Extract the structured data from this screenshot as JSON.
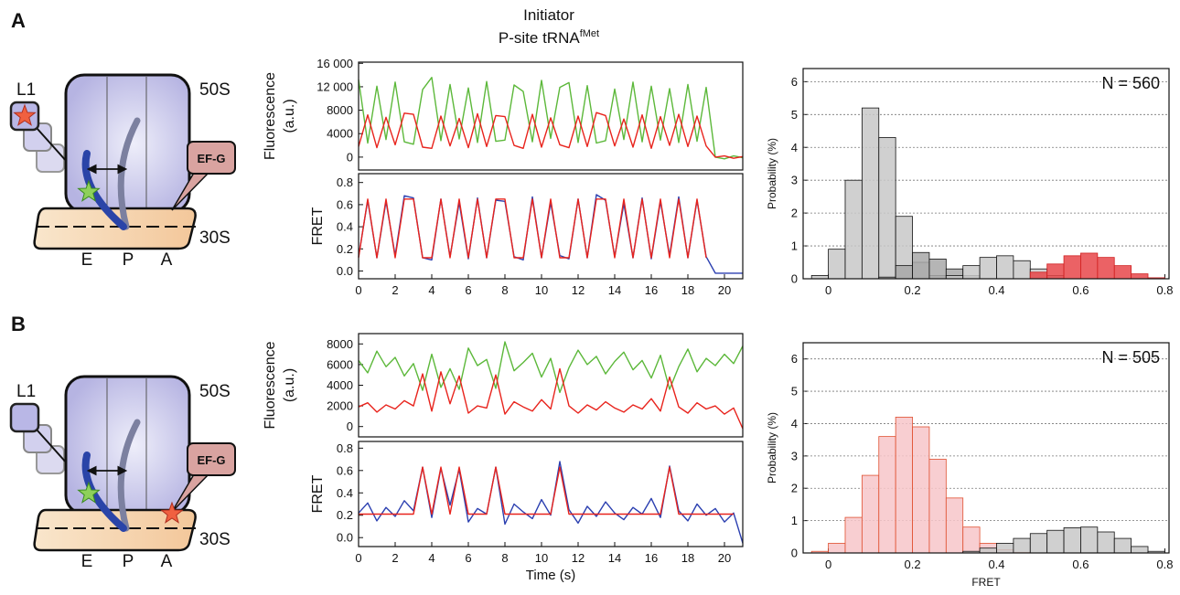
{
  "panel_labels": [
    "A",
    "B"
  ],
  "header": {
    "line1": "Initiator",
    "line2": "P-site tRNA",
    "superscript": "fMet"
  },
  "diagrams": [
    {
      "l1": "L1",
      "large_subunit": "50S",
      "factor": "EF-G",
      "small_subunit": "30S",
      "sites": [
        "E",
        "P",
        "A"
      ]
    },
    {
      "l1": "L1",
      "large_subunit": "50S",
      "factor": "EF-G",
      "small_subunit": "30S",
      "sites": [
        "E",
        "P",
        "A"
      ]
    }
  ],
  "chart_data": [
    {
      "type": "line",
      "ylabel": [
        "Fluorescence",
        "(a.u.)"
      ],
      "x": [
        0,
        0.5,
        1,
        1.5,
        2,
        2.5,
        3,
        3.5,
        4,
        4.5,
        5,
        5.5,
        6,
        6.5,
        7,
        7.5,
        8,
        8.5,
        9,
        9.5,
        10,
        10.5,
        11,
        11.5,
        12,
        12.5,
        13,
        13.5,
        14,
        14.5,
        15,
        15.5,
        16,
        16.5,
        17,
        17.5,
        18,
        18.5,
        19,
        19.5,
        20,
        20.5,
        21
      ],
      "xlim": [
        0,
        21
      ],
      "ylim": [
        -2200,
        16200
      ],
      "yticks": [
        0,
        4000,
        8000,
        {
          "value": 12000,
          "label": "12 000"
        },
        {
          "value": 16000,
          "label": "16 000"
        }
      ],
      "series": [
        {
          "color": "#5cb83a",
          "values": [
            13200,
            2400,
            12100,
            3000,
            12800,
            2600,
            2200,
            11500,
            13600,
            2800,
            12400,
            3100,
            11800,
            2500,
            12900,
            2700,
            2900,
            12300,
            11200,
            2600,
            13100,
            3200,
            11900,
            12700,
            2500,
            12200,
            2400,
            2800,
            11600,
            3000,
            12800,
            2600,
            12100,
            2900,
            11700,
            2500,
            12400,
            2700,
            11900,
            0,
            -300,
            200,
            -100
          ]
        },
        {
          "color": "#e8231c",
          "values": [
            1800,
            7200,
            1600,
            6800,
            2100,
            7500,
            7300,
            1700,
            1500,
            7000,
            1900,
            6600,
            1600,
            7400,
            1800,
            7100,
            6900,
            2000,
            1500,
            7300,
            1700,
            6700,
            2100,
            1600,
            7000,
            1800,
            7600,
            7100,
            1900,
            6500,
            1700,
            7200,
            1500,
            6900,
            2000,
            7300,
            1800,
            7000,
            1900,
            0,
            200,
            -200,
            100
          ]
        }
      ]
    },
    {
      "type": "line",
      "ylabel": "FRET",
      "x": [
        0,
        0.5,
        1,
        1.5,
        2,
        2.5,
        3,
        3.5,
        4,
        4.5,
        5,
        5.5,
        6,
        6.5,
        7,
        7.5,
        8,
        8.5,
        9,
        9.5,
        10,
        10.5,
        11,
        11.5,
        12,
        12.5,
        13,
        13.5,
        14,
        14.5,
        15,
        15.5,
        16,
        16.5,
        17,
        17.5,
        18,
        18.5,
        19,
        19.5,
        20,
        20.5,
        21
      ],
      "xlim": [
        0,
        21
      ],
      "xticks": [
        0,
        2,
        4,
        6,
        8,
        10,
        12,
        14,
        16,
        18,
        20
      ],
      "ylim": [
        -0.07,
        0.88
      ],
      "yticks": [
        {
          "value": 0,
          "label": "0.0"
        },
        0.2,
        0.4,
        0.6,
        0.8
      ],
      "series": [
        {
          "color": "#2b3fb0",
          "values": [
            0.13,
            0.64,
            0.12,
            0.63,
            0.14,
            0.68,
            0.66,
            0.12,
            0.1,
            0.65,
            0.13,
            0.62,
            0.11,
            0.66,
            0.12,
            0.64,
            0.63,
            0.13,
            0.1,
            0.67,
            0.12,
            0.62,
            0.14,
            0.11,
            0.65,
            0.12,
            0.69,
            0.64,
            0.13,
            0.61,
            0.12,
            0.66,
            0.11,
            0.63,
            0.14,
            0.67,
            0.12,
            0.64,
            0.13,
            -0.02,
            -0.02,
            -0.02,
            -0.02
          ]
        },
        {
          "color": "#e8231c",
          "values": [
            0.12,
            0.65,
            0.12,
            0.65,
            0.12,
            0.65,
            0.65,
            0.12,
            0.12,
            0.65,
            0.12,
            0.65,
            0.12,
            0.65,
            0.12,
            0.65,
            0.65,
            0.12,
            0.12,
            0.65,
            0.12,
            0.65,
            0.12,
            0.12,
            0.65,
            0.12,
            0.65,
            0.65,
            0.12,
            0.65,
            0.12,
            0.65,
            0.12,
            0.65,
            0.12,
            0.65,
            0.12,
            0.65,
            0.12,
            null,
            null,
            null,
            null
          ]
        }
      ]
    },
    {
      "type": "histogram",
      "ylabel": "Probability (%)",
      "annotation": "N = 560",
      "bins": [
        -0.04,
        0,
        0.04,
        0.08,
        0.12,
        0.16,
        0.2,
        0.24,
        0.28,
        0.32,
        0.36,
        0.4,
        0.44,
        0.48,
        0.52,
        0.56,
        0.6,
        0.64,
        0.68,
        0.72,
        0.76,
        0.8
      ],
      "xlim": [
        -0.06,
        0.81
      ],
      "xticks": [
        0,
        0.2,
        0.4,
        0.6,
        0.8
      ],
      "ylim": [
        0,
        6.4
      ],
      "yticks": [
        0,
        1,
        2,
        3,
        4,
        5,
        6
      ],
      "grid": true,
      "series": [
        {
          "color": "#c8c8c8",
          "edge_color": "#111111",
          "values": [
            0.1,
            0.9,
            3.0,
            5.2,
            4.3,
            1.9,
            0.5,
            0.1,
            0,
            0,
            0,
            0,
            0,
            0,
            0,
            0,
            0,
            0,
            0,
            0,
            0
          ]
        },
        {
          "color": "#a8a8a8",
          "edge_color": "#111111",
          "values": [
            0,
            0,
            0,
            0,
            0.05,
            0.4,
            0.8,
            0.6,
            0.3,
            0.1,
            0,
            0,
            0,
            0,
            0,
            0,
            0,
            0,
            0,
            0,
            0
          ]
        },
        {
          "color": "#c8c8c8",
          "edge_color": "#111111",
          "values": [
            0,
            0,
            0,
            0,
            0,
            0,
            0,
            0,
            0.1,
            0.4,
            0.65,
            0.7,
            0.55,
            0.3,
            0.1,
            0,
            0,
            0,
            0,
            0,
            0
          ]
        },
        {
          "color": "#e8474a",
          "edge_color": "#d02020",
          "values": [
            0,
            0,
            0,
            0,
            0,
            0,
            0,
            0,
            0,
            0,
            0,
            0,
            0,
            0.2,
            0.45,
            0.7,
            0.78,
            0.65,
            0.4,
            0.15,
            0.03
          ]
        }
      ]
    },
    {
      "type": "line",
      "ylabel": [
        "Fluorescence",
        "(a.u.)"
      ],
      "x": [
        0,
        0.5,
        1,
        1.5,
        2,
        2.5,
        3,
        3.5,
        4,
        4.5,
        5,
        5.5,
        6,
        6.5,
        7,
        7.5,
        8,
        8.5,
        9,
        9.5,
        10,
        10.5,
        11,
        11.5,
        12,
        12.5,
        13,
        13.5,
        14,
        14.5,
        15,
        15.5,
        16,
        16.5,
        17,
        17.5,
        18,
        18.5,
        19,
        19.5,
        20,
        20.5,
        21
      ],
      "xlim": [
        0,
        21
      ],
      "ylim": [
        -1000,
        9000
      ],
      "yticks": [
        0,
        2000,
        4000,
        6000,
        8000
      ],
      "series": [
        {
          "color": "#5cb83a",
          "values": [
            6400,
            5200,
            7300,
            5800,
            6700,
            4900,
            6100,
            3500,
            7000,
            3800,
            5600,
            3600,
            7600,
            5900,
            6500,
            3700,
            8200,
            5400,
            6200,
            7100,
            4800,
            6600,
            3300,
            5700,
            7400,
            6000,
            6800,
            5100,
            6300,
            7200,
            5500,
            6400,
            4700,
            6900,
            3600,
            5800,
            7500,
            5300,
            6600,
            5900,
            7000,
            6100,
            7800
          ]
        },
        {
          "color": "#e8231c",
          "values": [
            1900,
            2300,
            1400,
            2100,
            1700,
            2500,
            2000,
            5100,
            1500,
            5300,
            2200,
            4900,
            1300,
            2000,
            1800,
            5000,
            1200,
            2400,
            1900,
            1500,
            2600,
            1700,
            5600,
            2000,
            1300,
            2100,
            1600,
            2400,
            1800,
            1400,
            2100,
            1700,
            2700,
            1500,
            4800,
            1900,
            1300,
            2300,
            1700,
            2000,
            1200,
            1800,
            -200
          ]
        }
      ]
    },
    {
      "type": "line",
      "ylabel": "FRET",
      "xlabel": "Time (s)",
      "x": [
        0,
        0.5,
        1,
        1.5,
        2,
        2.5,
        3,
        3.5,
        4,
        4.5,
        5,
        5.5,
        6,
        6.5,
        7,
        7.5,
        8,
        8.5,
        9,
        9.5,
        10,
        10.5,
        11,
        11.5,
        12,
        12.5,
        13,
        13.5,
        14,
        14.5,
        15,
        15.5,
        16,
        16.5,
        17,
        17.5,
        18,
        18.5,
        19,
        19.5,
        20,
        20.5,
        21
      ],
      "xlim": [
        0,
        21
      ],
      "xticks": [
        0,
        2,
        4,
        6,
        8,
        10,
        12,
        14,
        16,
        18,
        20
      ],
      "ylim": [
        -0.08,
        0.86
      ],
      "yticks": [
        {
          "value": 0,
          "label": "0.0"
        },
        0.2,
        0.4,
        0.6,
        0.8
      ],
      "series": [
        {
          "color": "#2b3fb0",
          "values": [
            0.22,
            0.31,
            0.15,
            0.27,
            0.19,
            0.33,
            0.24,
            0.63,
            0.18,
            0.62,
            0.29,
            0.61,
            0.14,
            0.26,
            0.21,
            0.63,
            0.12,
            0.3,
            0.23,
            0.17,
            0.34,
            0.2,
            0.68,
            0.25,
            0.13,
            0.28,
            0.19,
            0.32,
            0.22,
            0.16,
            0.27,
            0.21,
            0.35,
            0.18,
            0.64,
            0.24,
            0.15,
            0.3,
            0.2,
            0.26,
            0.14,
            0.22,
            -0.05
          ]
        },
        {
          "color": "#e8231c",
          "values": [
            0.21,
            0.21,
            0.21,
            0.21,
            0.21,
            0.21,
            0.21,
            0.63,
            0.21,
            0.63,
            0.21,
            0.63,
            0.21,
            0.21,
            0.21,
            0.63,
            0.21,
            0.21,
            0.21,
            0.21,
            0.21,
            0.21,
            0.63,
            0.21,
            0.21,
            0.21,
            0.21,
            0.21,
            0.21,
            0.21,
            0.21,
            0.21,
            0.21,
            0.21,
            0.63,
            0.21,
            0.21,
            0.21,
            0.21,
            0.21,
            0.21,
            0.21,
            null
          ]
        }
      ]
    },
    {
      "type": "histogram",
      "ylabel": "Probability (%)",
      "xlabel": "FRET",
      "annotation": "N = 505",
      "bins": [
        -0.04,
        0,
        0.04,
        0.08,
        0.12,
        0.16,
        0.2,
        0.24,
        0.28,
        0.32,
        0.36,
        0.4,
        0.44,
        0.48,
        0.52,
        0.56,
        0.6,
        0.64,
        0.68,
        0.72,
        0.76,
        0.8
      ],
      "xlim": [
        -0.06,
        0.81
      ],
      "xticks": [
        0,
        0.2,
        0.4,
        0.6,
        0.8
      ],
      "ylim": [
        0,
        6.5
      ],
      "yticks": [
        0,
        1,
        2,
        3,
        4,
        5,
        6
      ],
      "grid": true,
      "series": [
        {
          "color": "#f7c6c9",
          "edge_color": "#e05030",
          "values": [
            0.05,
            0.3,
            1.1,
            2.4,
            3.6,
            4.2,
            3.9,
            2.9,
            1.7,
            0.8,
            0.3,
            0.1,
            0.02,
            0,
            0,
            0,
            0,
            0,
            0,
            0,
            0
          ]
        },
        {
          "color": "#c8c8c8",
          "edge_color": "#111111",
          "values": [
            0,
            0,
            0,
            0,
            0,
            0,
            0,
            0,
            0,
            0.05,
            0.15,
            0.3,
            0.45,
            0.6,
            0.7,
            0.78,
            0.8,
            0.65,
            0.45,
            0.2,
            0.05
          ]
        }
      ]
    }
  ]
}
